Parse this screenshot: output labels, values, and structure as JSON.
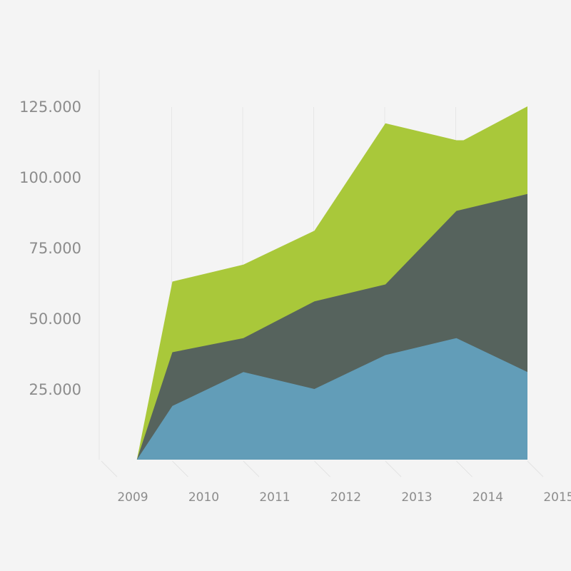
{
  "chart_data": {
    "type": "area",
    "stacked": true,
    "title": "",
    "xlabel": "",
    "ylabel": "",
    "categories": [
      "2009",
      "2010",
      "2011",
      "2012",
      "2013",
      "2014",
      "2015"
    ],
    "y_ticks": [
      "25.000",
      "50.000",
      "75.000",
      "100.000",
      "125.000"
    ],
    "y_tick_values": [
      25000,
      50000,
      75000,
      100000,
      125000
    ],
    "ylim": [
      0,
      125000
    ],
    "grid": false,
    "legend": "none",
    "series": [
      {
        "color": "#629db8",
        "points": [
          [
            2009,
            0
          ],
          [
            2009.5,
            0
          ],
          [
            2010,
            19000
          ],
          [
            2011,
            31000
          ],
          [
            2012,
            25000
          ],
          [
            2013,
            37000
          ],
          [
            2014,
            43000
          ],
          [
            2015,
            31000
          ]
        ]
      },
      {
        "color": "#56635d",
        "points": [
          [
            2009,
            0
          ],
          [
            2009.5,
            0
          ],
          [
            2010,
            38000
          ],
          [
            2011,
            43000
          ],
          [
            2012,
            56000
          ],
          [
            2013,
            62000
          ],
          [
            2014,
            88000
          ],
          [
            2015,
            94000
          ]
        ]
      },
      {
        "color": "#a9c83a",
        "points": [
          [
            2009,
            0
          ],
          [
            2009.5,
            0
          ],
          [
            2010,
            63000
          ],
          [
            2011,
            69000
          ],
          [
            2012,
            81000
          ],
          [
            2013,
            119000
          ],
          [
            2014,
            113000
          ],
          [
            2014.1,
            113000
          ],
          [
            2015,
            125000
          ]
        ]
      }
    ]
  }
}
